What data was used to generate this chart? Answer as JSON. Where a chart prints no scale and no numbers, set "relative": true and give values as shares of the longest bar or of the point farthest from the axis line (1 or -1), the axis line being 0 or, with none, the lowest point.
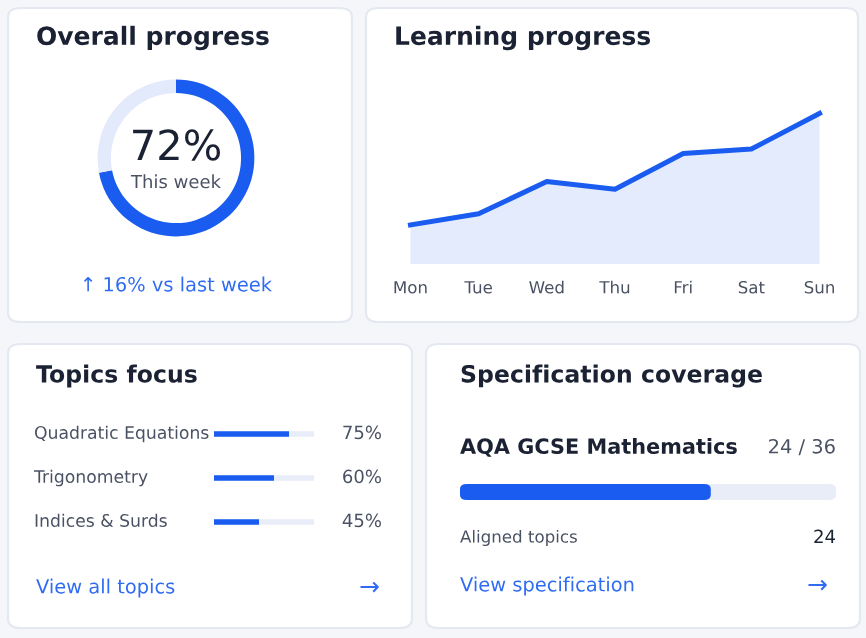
{
  "chart_data": [
    {
      "type": "donut",
      "title": "Overall progress",
      "categories": [
        null,
        null
      ],
      "values": [
        72,
        28
      ],
      "colors": [
        "#1a5cf0",
        "#e3eafb"
      ],
      "value_labels": [
        "72%",
        null
      ],
      "annotations": [
        "This week",
        "↑ 16% vs last week"
      ]
    },
    {
      "type": "area",
      "title": "Learning progress",
      "relative": true,
      "categories": [
        "Mon",
        "Tue",
        "Wed",
        "Thu",
        "Fri",
        "Sat",
        "Sun"
      ],
      "values": [
        0,
        0.1,
        0.39,
        0.32,
        0.64,
        0.68,
        1
      ],
      "color": "#1a5cf0",
      "grid": false
    },
    {
      "type": "bar",
      "orientation": "horizontal",
      "title": "Topics focus",
      "categories": [
        "Quadratic Equations",
        "Trigonometry",
        "Indices & Surds"
      ],
      "values": [
        75,
        60,
        45
      ],
      "color": "#1a5cf0",
      "xlim": [
        0,
        100
      ],
      "tick_labels": false,
      "value_labels": [
        "75%",
        "60%",
        "45%"
      ],
      "annotations": [
        "View all topics",
        "→"
      ]
    },
    {
      "type": "other",
      "title": "Specification coverage",
      "annotations": [
        "AQA GCSE Mathematics",
        "24 / 36",
        "Aligned topics",
        "24",
        "View specification",
        "→"
      ]
    }
  ]
}
